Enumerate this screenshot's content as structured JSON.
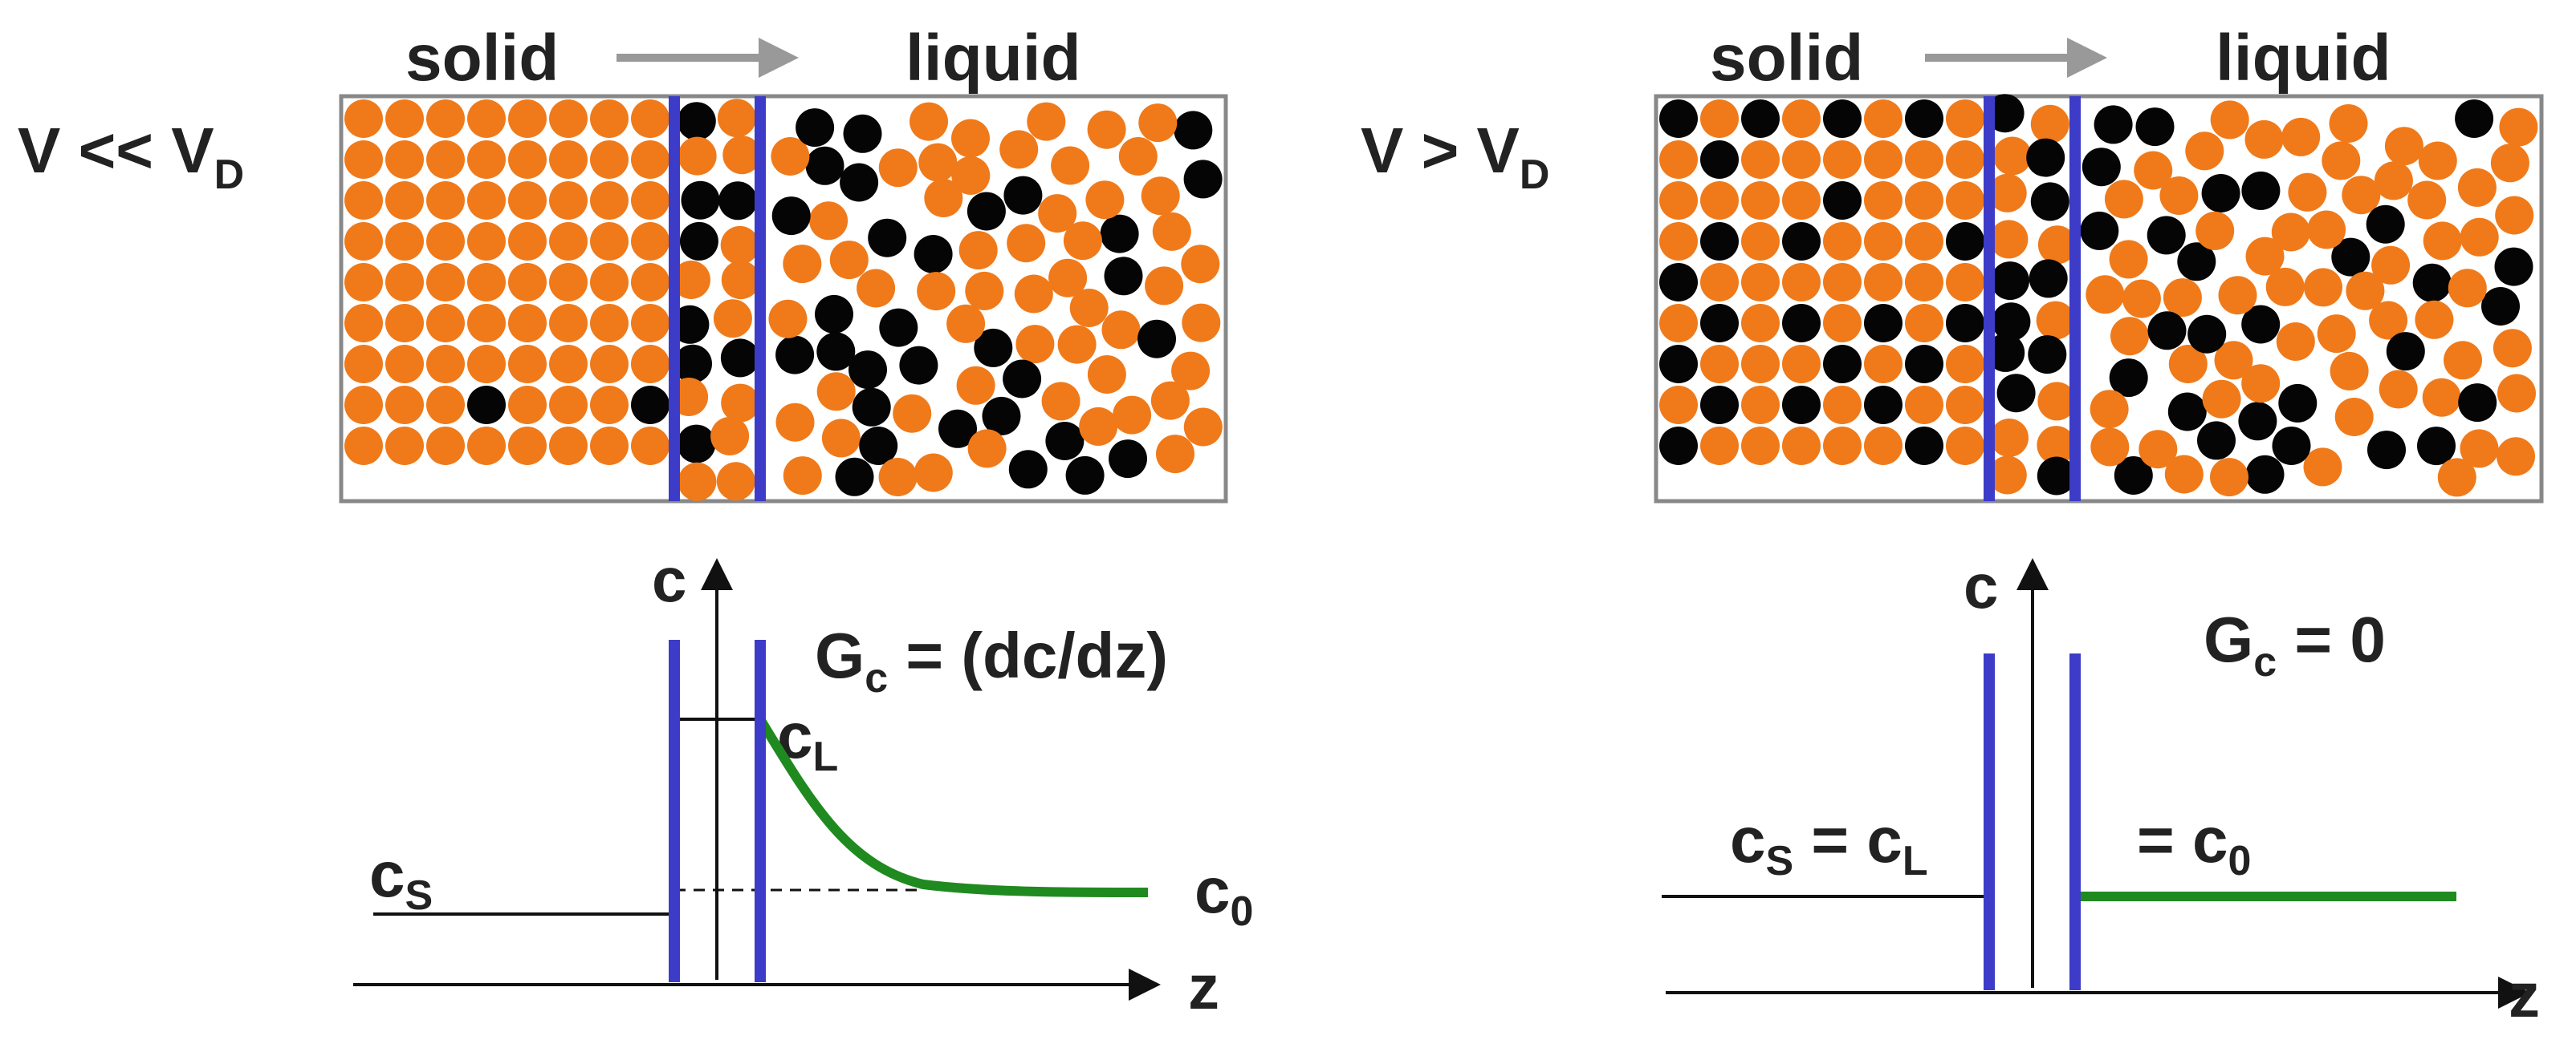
{
  "colors": {
    "solvent_atom": "#f07a1a",
    "solute_atom": "#050505",
    "interface_line": "#3c3cc8",
    "profile_curve": "#1f8a1f",
    "arrow": "#999999",
    "text": "#222222",
    "axis": "#111111"
  },
  "panels": [
    {
      "id": "slow",
      "condition": {
        "main": "V << V",
        "sub": "D"
      },
      "label_solid": "solid",
      "label_liquid": "liquid",
      "axis_c": "c",
      "axis_z": "z",
      "gradient": {
        "main": "G",
        "sub": "c",
        "rest": " = (dc/dz)"
      },
      "c_s": {
        "main": "c",
        "sub": "S"
      },
      "c_l": {
        "main": "c",
        "sub": "L"
      },
      "c_0": {
        "main": "c",
        "sub": "0"
      },
      "profile": "exponential-decay"
    },
    {
      "id": "fast",
      "condition": {
        "main": "V > V",
        "sub": "D"
      },
      "label_solid": "solid",
      "label_liquid": "liquid",
      "axis_c": "c",
      "axis_z": "z",
      "gradient": {
        "main": "G",
        "sub": "c",
        "rest": " = 0"
      },
      "eq_left": {
        "c1": "c",
        "s1": "S",
        "mid": " = c",
        "s2": "L"
      },
      "eq_right": {
        "main": "= c",
        "sub": "0"
      },
      "profile": "flat"
    }
  ]
}
